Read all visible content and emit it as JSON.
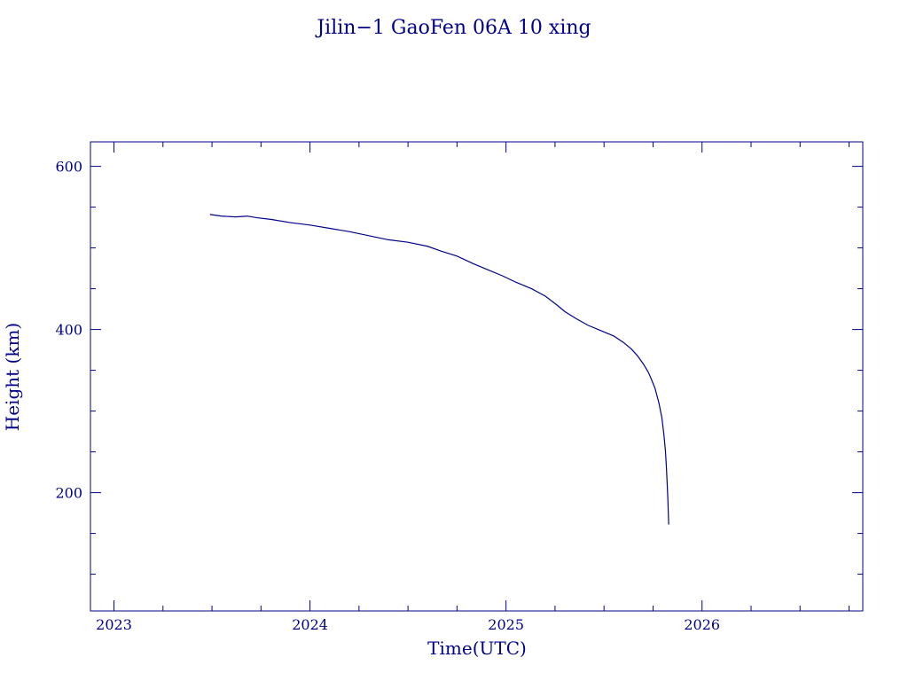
{
  "chart_data": {
    "type": "line",
    "title": "Jilin−1 GaoFen 06A 10 xing",
    "xlabel": "Time(UTC)",
    "ylabel": "Height (km)",
    "x_ticks": [
      "2023",
      "2024",
      "2025",
      "2026"
    ],
    "y_ticks": [
      200,
      400,
      600
    ],
    "xlim": [
      2022.88,
      2026.82
    ],
    "ylim": [
      55,
      630
    ],
    "grid": false,
    "color": "#00008b",
    "series": [
      {
        "x": [
          2023.49,
          2023.55,
          2023.62,
          2023.68,
          2023.73,
          2023.8,
          2023.9,
          2024.0,
          2024.1,
          2024.2,
          2024.3,
          2024.4,
          2024.5,
          2024.6,
          2024.67,
          2024.75,
          2024.83,
          2024.9,
          2024.98,
          2025.05,
          2025.13,
          2025.2,
          2025.26,
          2025.3,
          2025.36,
          2025.42,
          2025.49,
          2025.55,
          2025.6,
          2025.64,
          2025.67,
          2025.7,
          2025.725,
          2025.74,
          2025.76,
          2025.78,
          2025.795,
          2025.805,
          2025.813,
          2025.818,
          2025.822,
          2025.826,
          2025.828,
          2025.83
        ],
        "y": [
          541,
          539,
          538,
          539,
          537,
          535,
          531,
          528,
          524,
          520,
          515,
          510,
          507,
          502,
          496,
          490,
          481,
          474,
          466,
          458,
          450,
          441,
          430,
          422,
          413,
          405,
          398,
          392,
          384,
          376,
          368,
          358,
          348,
          340,
          328,
          310,
          292,
          272,
          252,
          232,
          212,
          190,
          175,
          161
        ]
      }
    ]
  }
}
